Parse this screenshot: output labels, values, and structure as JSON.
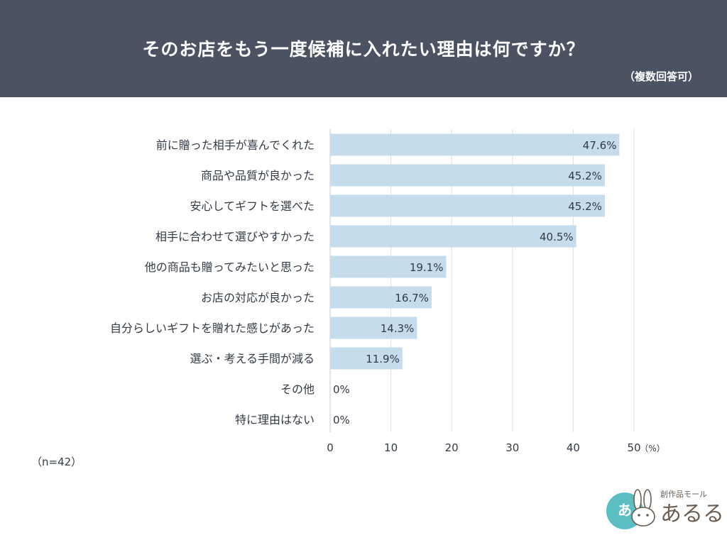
{
  "header": {
    "title": "そのお店をもう一度候補に入れたい理由は何ですか？",
    "subtitle": "（複数回答可）"
  },
  "sample_note": "（n=42）",
  "logo": {
    "badge_text": "あ",
    "tagline": "創作品モール",
    "name": "あるる"
  },
  "colors": {
    "header_bg": "#4b5262",
    "bar": "#c5dced",
    "grid": "#dcdfe4",
    "text": "#333a45",
    "logo_teal": "#5bbec3"
  },
  "chart_data": {
    "type": "bar",
    "orientation": "horizontal",
    "categories": [
      "前に贈った相手が喜んでくれた",
      "商品や品質が良かった",
      "安心してギフトを選べた",
      "相手に合わせて選びやすかった",
      "他の商品も贈ってみたいと思った",
      "お店の対応が良かった",
      "自分らしいギフトを贈れた感じがあった",
      "選ぶ・考える手間が減る",
      "その他",
      "特に理由はない"
    ],
    "values": [
      47.6,
      45.2,
      45.2,
      40.5,
      19.1,
      16.7,
      14.3,
      11.9,
      0,
      0
    ],
    "value_labels": [
      "47.6%",
      "45.2%",
      "45.2%",
      "40.5%",
      "19.1%",
      "16.7%",
      "14.3%",
      "11.9%",
      "0%",
      "0%"
    ],
    "xticks": [
      "0",
      "10",
      "20",
      "30",
      "40",
      "50"
    ],
    "xunit": "（%）",
    "xlim": [
      0,
      50
    ],
    "grid": true
  }
}
